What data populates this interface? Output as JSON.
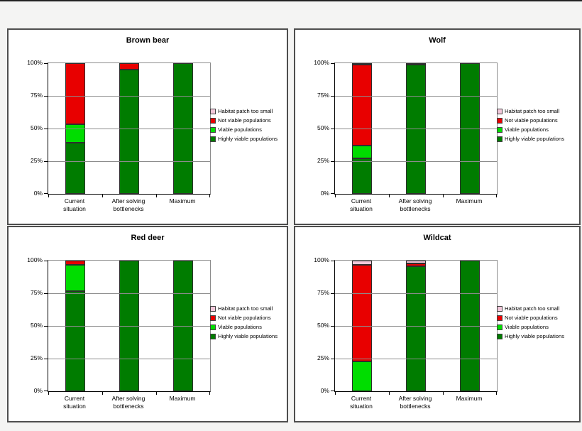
{
  "page": {
    "background": "#f4f4f3",
    "top_border_color": "#222222"
  },
  "colors": {
    "habitat_too_small": "#f2c8da",
    "not_viable": "#e80000",
    "viable": "#00dd00",
    "highly_viable": "#007c00",
    "segment_border": "#2e2e2e",
    "panel_border": "#4e4e4e",
    "gridline": "#8c8c8c"
  },
  "legend": [
    {
      "key": "habitat_too_small",
      "label": "Habitat patch too small"
    },
    {
      "key": "not_viable",
      "label": "Not viable populations"
    },
    {
      "key": "viable",
      "label": "Viable populations"
    },
    {
      "key": "highly_viable",
      "label": "Highly viable populations"
    }
  ],
  "chart_data": [
    {
      "type": "bar",
      "stacked": true,
      "title": "Brown bear",
      "categories": [
        [
          "Current",
          "situation"
        ],
        [
          "After solving",
          "bottlenecks"
        ],
        [
          "Maximum"
        ]
      ],
      "yticks": [
        "100%",
        "75%",
        "50%",
        "25%",
        "0%"
      ],
      "ylim": [
        0,
        100
      ],
      "grid": true,
      "legend_position": "right",
      "series": [
        {
          "key": "highly_viable",
          "name": "Highly viable populations",
          "values": [
            39,
            95,
            100
          ]
        },
        {
          "key": "viable",
          "name": "Viable populations",
          "values": [
            14,
            0,
            0
          ]
        },
        {
          "key": "not_viable",
          "name": "Not viable populations",
          "values": [
            47,
            5,
            0
          ]
        },
        {
          "key": "habitat_too_small",
          "name": "Habitat patch too small",
          "values": [
            0,
            0,
            0
          ]
        }
      ]
    },
    {
      "type": "bar",
      "stacked": true,
      "title": "Wolf",
      "categories": [
        [
          "Current",
          "situation"
        ],
        [
          "After solving",
          "bottlenecks"
        ],
        [
          "Maximum"
        ]
      ],
      "yticks": [
        "100%",
        "75%",
        "50%",
        "25%",
        "0%"
      ],
      "ylim": [
        0,
        100
      ],
      "grid": true,
      "legend_position": "right",
      "series": [
        {
          "key": "highly_viable",
          "name": "Highly viable populations",
          "values": [
            27,
            99,
            100
          ]
        },
        {
          "key": "viable",
          "name": "Viable populations",
          "values": [
            10,
            0,
            0
          ]
        },
        {
          "key": "not_viable",
          "name": "Not viable populations",
          "values": [
            62,
            0,
            0
          ]
        },
        {
          "key": "habitat_too_small",
          "name": "Habitat patch too small",
          "values": [
            1,
            1,
            0
          ]
        }
      ]
    },
    {
      "type": "bar",
      "stacked": true,
      "title": "Red deer",
      "categories": [
        [
          "Current",
          "situation"
        ],
        [
          "After solving",
          "bottlenecks"
        ],
        [
          "Maximum"
        ]
      ],
      "yticks": [
        "100%",
        "75%",
        "50%",
        "25%",
        "0%"
      ],
      "ylim": [
        0,
        100
      ],
      "grid": true,
      "legend_position": "right",
      "series": [
        {
          "key": "highly_viable",
          "name": "Highly viable populations",
          "values": [
            77,
            100,
            100
          ]
        },
        {
          "key": "viable",
          "name": "Viable populations",
          "values": [
            20,
            0,
            0
          ]
        },
        {
          "key": "not_viable",
          "name": "Not viable populations",
          "values": [
            3,
            0,
            0
          ]
        },
        {
          "key": "habitat_too_small",
          "name": "Habitat patch too small",
          "values": [
            0,
            0,
            0
          ]
        }
      ]
    },
    {
      "type": "bar",
      "stacked": true,
      "title": "Wildcat",
      "categories": [
        [
          "Current",
          "situation"
        ],
        [
          "After solving",
          "bottlenecks"
        ],
        [
          "Maximum"
        ]
      ],
      "yticks": [
        "100%",
        "75%",
        "50%",
        "25%",
        "0%"
      ],
      "ylim": [
        0,
        100
      ],
      "grid": true,
      "legend_position": "right",
      "series": [
        {
          "key": "highly_viable",
          "name": "Highly viable populations",
          "values": [
            0,
            96,
            100
          ]
        },
        {
          "key": "viable",
          "name": "Viable populations",
          "values": [
            23,
            0,
            0
          ]
        },
        {
          "key": "not_viable",
          "name": "Not viable populations",
          "values": [
            74,
            2,
            0
          ]
        },
        {
          "key": "habitat_too_small",
          "name": "Habitat patch too small",
          "values": [
            3,
            2,
            0
          ]
        }
      ]
    }
  ]
}
